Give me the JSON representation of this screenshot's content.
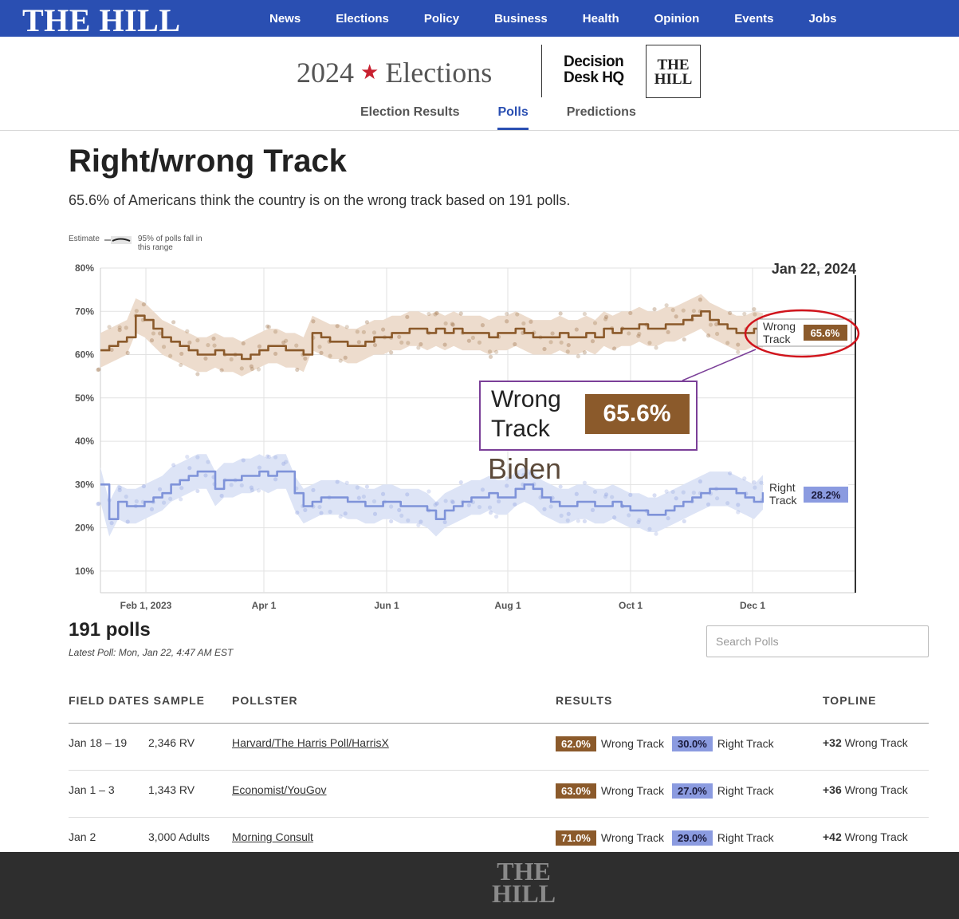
{
  "nav": {
    "logo": "THE HILL",
    "items": [
      "News",
      "Elections",
      "Policy",
      "Business",
      "Health",
      "Opinion",
      "Events",
      "Jobs"
    ]
  },
  "subheader": {
    "year": "2024",
    "elections": "Elections",
    "ddhq_line1": "Decision",
    "ddhq_line2": "Desk HQ",
    "hill_line1": "THE",
    "hill_line2": "HILL",
    "tabs": [
      "Election Results",
      "Polls",
      "Predictions"
    ],
    "active_tab": "Polls"
  },
  "page": {
    "title": "Right/wrong Track",
    "summary": "65.6% of Americans think the country is on the wrong track based on 191 polls."
  },
  "legend": {
    "estimate": "Estimate",
    "range_line1": "95% of polls fall in",
    "range_line2": "this range"
  },
  "chart_data": {
    "type": "line",
    "date_label": "Jan 22, 2024",
    "y_ticks": [
      "80%",
      "70%",
      "60%",
      "50%",
      "40%",
      "30%",
      "20%",
      "10%"
    ],
    "ylim": [
      5,
      80
    ],
    "x_ticks": [
      "Feb 1, 2023",
      "Apr 1",
      "Jun 1",
      "Aug 1",
      "Oct 1",
      "Dec 1"
    ],
    "colors": {
      "wrong": "#8b5a2b",
      "right": "#7f93d9",
      "wrong_band": "#eddccd",
      "right_band": "#dde4f6"
    },
    "series": [
      {
        "name": "Wrong Track",
        "values": [
          61,
          62,
          63,
          64,
          69,
          68,
          66,
          64,
          63,
          62,
          61,
          60,
          60,
          61,
          60,
          60,
          59,
          60,
          61,
          62,
          62,
          61,
          61,
          60,
          65,
          64,
          63,
          63,
          62,
          62,
          63,
          64,
          64,
          65,
          65,
          66,
          66,
          65,
          66,
          65,
          66,
          65,
          65,
          65,
          64,
          65,
          65,
          66,
          65,
          64,
          64,
          64,
          65,
          64,
          64,
          65,
          64,
          66,
          65,
          66,
          66,
          67,
          66,
          66,
          67,
          67,
          68,
          69,
          70,
          68,
          67,
          66,
          65,
          65,
          66,
          65.6
        ]
      },
      {
        "name": "Right Track",
        "values": [
          30,
          22,
          26,
          25,
          25,
          26,
          27,
          28,
          30,
          31,
          32,
          33,
          33,
          29,
          31,
          31,
          32,
          32,
          33,
          32,
          33,
          33,
          28,
          25,
          26,
          27,
          27,
          27,
          26,
          26,
          25,
          25,
          26,
          26,
          25,
          25,
          25,
          24,
          22,
          24,
          25,
          26,
          27,
          27,
          28,
          27,
          27,
          29,
          30,
          29,
          27,
          26,
          25,
          25,
          26,
          26,
          25,
          25,
          26,
          25,
          24,
          24,
          23,
          23,
          24,
          25,
          26,
          27,
          28,
          29,
          29,
          29,
          28,
          27,
          26,
          28.2
        ]
      }
    ],
    "end_labels": {
      "wrong": {
        "label1": "Wrong",
        "label2": "Track",
        "value": "65.6%"
      },
      "right": {
        "label1": "Right",
        "label2": "Track",
        "value": "28.2%"
      }
    },
    "callout": {
      "label1": "Wrong",
      "label2": "Track",
      "value": "65.6%",
      "note": "Biden"
    }
  },
  "polls": {
    "count": "191 polls",
    "latest": "Latest Poll: Mon, Jan 22, 4:47 AM EST",
    "search_placeholder": "Search Polls",
    "headers": {
      "dates_sample": "FIELD DATES SAMPLE",
      "pollster": "POLLSTER",
      "results": "RESULTS",
      "topline": "TOPLINE"
    },
    "rows": [
      {
        "dates": "Jan 18 – 19",
        "sample": "2,346 RV",
        "pollster": "Harvard/The Harris Poll/HarrisX",
        "wrong": "62.0%",
        "wrong_label": "Wrong Track",
        "right": "30.0%",
        "right_label": "Right Track",
        "topline_num": "+32",
        "topline_label": "Wrong Track"
      },
      {
        "dates": "Jan 1 – 3",
        "sample": "1,343 RV",
        "pollster": "Economist/YouGov",
        "wrong": "63.0%",
        "wrong_label": "Wrong Track",
        "right": "27.0%",
        "right_label": "Right Track",
        "topline_num": "+36",
        "topline_label": "Wrong Track"
      },
      {
        "dates": "Jan 2",
        "sample": "3,000 Adults",
        "pollster": "Morning Consult",
        "wrong": "71.0%",
        "wrong_label": "Wrong Track",
        "right": "29.0%",
        "right_label": "Right Track",
        "topline_num": "+42",
        "topline_label": "Wrong Track"
      }
    ]
  },
  "footer": {
    "logo_line1": "THE",
    "logo_line2": "HILL"
  }
}
